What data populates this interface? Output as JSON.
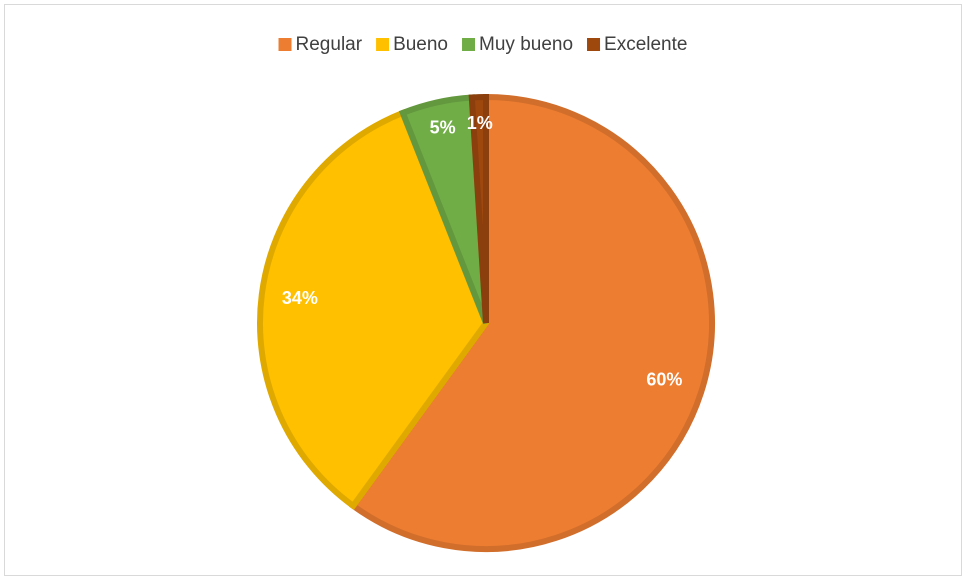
{
  "chart_data": {
    "type": "pie",
    "categories": [
      "Regular",
      "Bueno",
      "Muy bueno",
      "Excelente"
    ],
    "values": [
      60,
      34,
      5,
      1
    ],
    "value_labels": [
      "60%",
      "34%",
      "5%",
      "1%"
    ],
    "colors": [
      "#ED7D31",
      "#FFC000",
      "#70AD47",
      "#9E480E"
    ],
    "legend": "top"
  }
}
